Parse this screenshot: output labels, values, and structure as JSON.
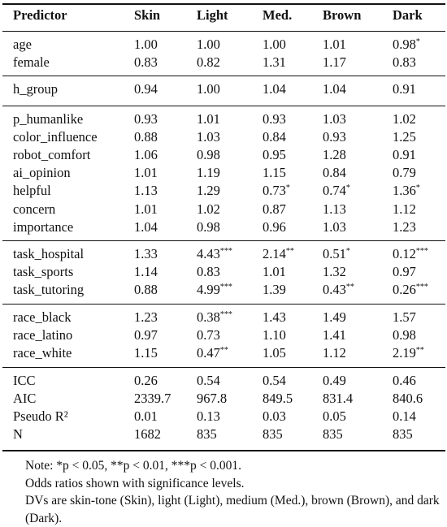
{
  "table": {
    "headers": [
      "Predictor",
      "Skin",
      "Light",
      "Med.",
      "Brown",
      "Dark"
    ],
    "groups": [
      [
        [
          "age",
          "1.00",
          "",
          "1.00",
          "",
          "1.00",
          "",
          "1.01",
          "",
          "0.98",
          "*"
        ],
        [
          "female",
          "0.83",
          "",
          "0.82",
          "",
          "1.31",
          "",
          "1.17",
          "",
          "0.83",
          ""
        ]
      ],
      [
        [
          "h_group",
          "0.94",
          "",
          "1.00",
          "",
          "1.04",
          "",
          "1.04",
          "",
          "0.91",
          ""
        ]
      ],
      [
        [
          "p_humanlike",
          "0.93",
          "",
          "1.01",
          "",
          "0.93",
          "",
          "1.03",
          "",
          "1.02",
          ""
        ],
        [
          "color_influence",
          "0.88",
          "",
          "1.03",
          "",
          "0.84",
          "",
          "0.93",
          "",
          "1.25",
          ""
        ],
        [
          "robot_comfort",
          "1.06",
          "",
          "0.98",
          "",
          "0.95",
          "",
          "1.28",
          "",
          "0.91",
          ""
        ],
        [
          "ai_opinion",
          "1.01",
          "",
          "1.19",
          "",
          "1.15",
          "",
          "0.84",
          "",
          "0.79",
          ""
        ],
        [
          "helpful",
          "1.13",
          "",
          "1.29",
          "",
          "0.73",
          "*",
          "0.74",
          "*",
          "1.36",
          "*"
        ],
        [
          "concern",
          "1.01",
          "",
          "1.02",
          "",
          "0.87",
          "",
          "1.13",
          "",
          "1.12",
          ""
        ],
        [
          "importance",
          "1.04",
          "",
          "0.98",
          "",
          "0.96",
          "",
          "1.03",
          "",
          "1.23",
          ""
        ]
      ],
      [
        [
          "task_hospital",
          "1.33",
          "",
          "4.43",
          "***",
          "2.14",
          "**",
          "0.51",
          "*",
          "0.12",
          "***"
        ],
        [
          "task_sports",
          "1.14",
          "",
          "0.83",
          "",
          "1.01",
          "",
          "1.32",
          "",
          "0.97",
          ""
        ],
        [
          "task_tutoring",
          "0.88",
          "",
          "4.99",
          "***",
          "1.39",
          "",
          "0.43",
          "**",
          "0.26",
          "***"
        ]
      ],
      [
        [
          "race_black",
          "1.23",
          "",
          "0.38",
          "***",
          "1.43",
          "",
          "1.49",
          "",
          "1.57",
          ""
        ],
        [
          "race_latino",
          "0.97",
          "",
          "0.73",
          "",
          "1.10",
          "",
          "1.41",
          "",
          "0.98",
          ""
        ],
        [
          "race_white",
          "1.15",
          "",
          "0.47",
          "**",
          "1.05",
          "",
          "1.12",
          "",
          "2.19",
          "**"
        ]
      ],
      [
        [
          "ICC",
          "0.26",
          "",
          "0.54",
          "",
          "0.54",
          "",
          "0.49",
          "",
          "0.46",
          ""
        ],
        [
          "AIC",
          "2339.7",
          "",
          "967.8",
          "",
          "849.5",
          "",
          "831.4",
          "",
          "840.6",
          ""
        ],
        [
          "Pseudo R²",
          "0.01",
          "",
          "0.13",
          "",
          "0.03",
          "",
          "0.05",
          "",
          "0.14",
          ""
        ],
        [
          "N",
          "1682",
          "",
          "835",
          "",
          "835",
          "",
          "835",
          "",
          "835",
          ""
        ]
      ]
    ]
  },
  "notes": {
    "line1": "Note: *p < 0.05, **p < 0.01, ***p < 0.001.",
    "line2": "Odds ratios shown with significance levels.",
    "line3": "DVs are skin-tone (Skin), light (Light), medium (Med.), brown (Brown), and dark (Dark)."
  }
}
